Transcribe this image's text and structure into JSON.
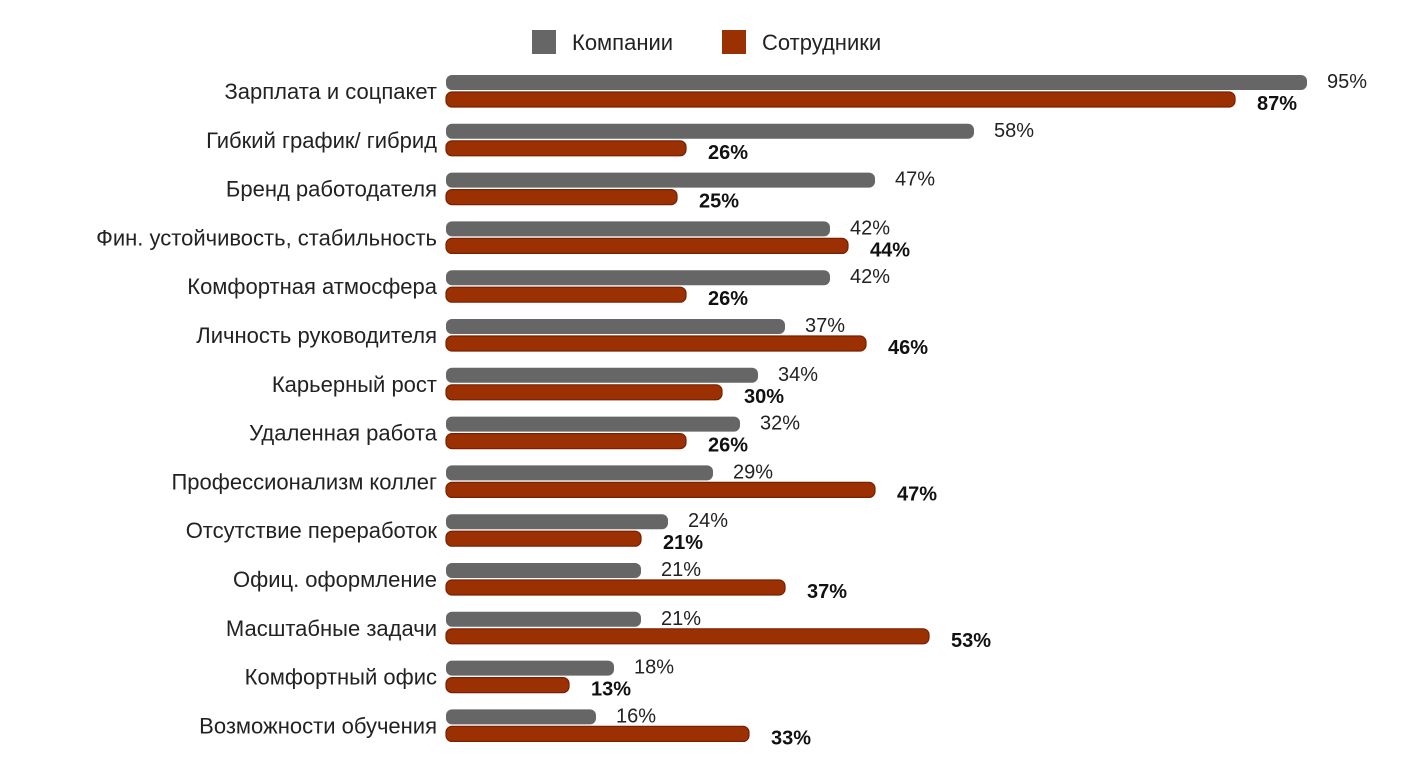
{
  "chart_data": {
    "type": "bar",
    "orientation": "horizontal",
    "title": "",
    "xlabel": "",
    "ylabel": "",
    "xlim": [
      0,
      100
    ],
    "grid": false,
    "legend_position": "top",
    "value_suffix": "%",
    "categories": [
      "Зарплата и соцпакет",
      "Гибкий график/ гибрид",
      "Бренд работодателя",
      "Фин. устойчивость, стабильность",
      "Комфортная атмосфера",
      "Личность руководителя",
      "Карьерный рост",
      "Удаленная работа",
      "Профессионализм коллег",
      "Отсутствие переработок",
      "Офиц. оформление",
      "Масштабные задачи",
      "Комфортный офис",
      "Возможности обучения"
    ],
    "series": [
      {
        "name": "Компании",
        "color": "#666666",
        "values": [
          95,
          58,
          47,
          42,
          42,
          37,
          34,
          32,
          29,
          24,
          21,
          21,
          18,
          16
        ]
      },
      {
        "name": "Сотрудники",
        "color": "#9b3003",
        "values": [
          87,
          26,
          25,
          44,
          26,
          46,
          30,
          26,
          47,
          21,
          37,
          53,
          13,
          33
        ]
      }
    ]
  }
}
